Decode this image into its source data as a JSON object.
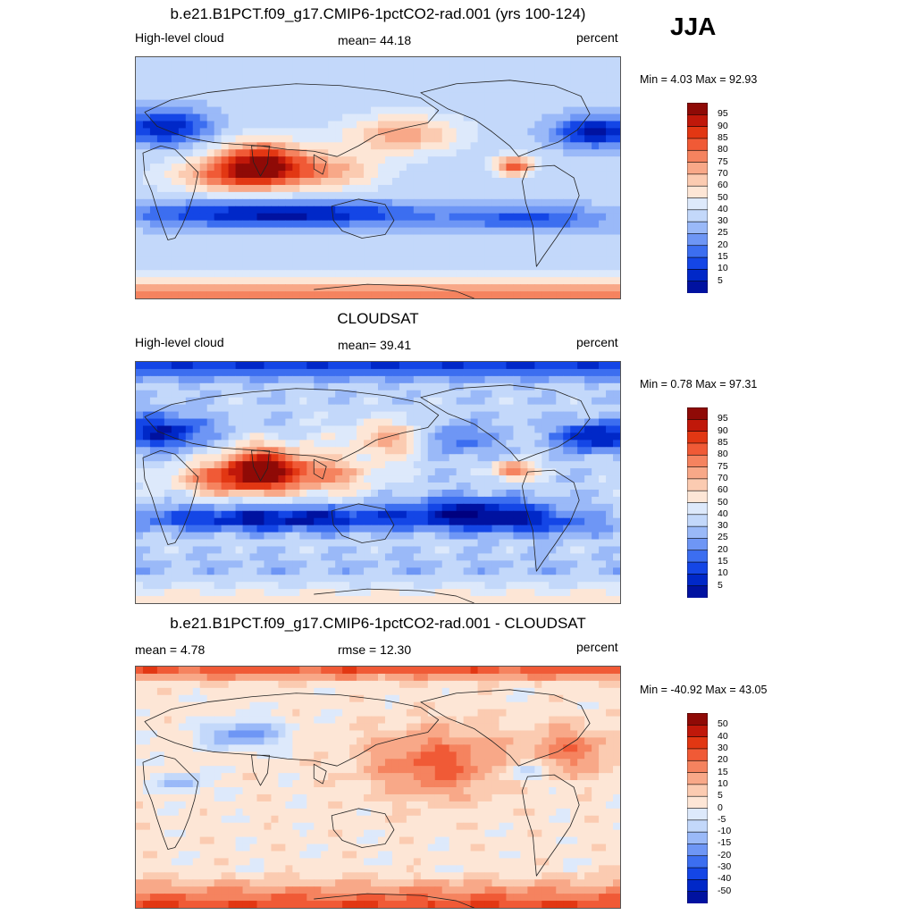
{
  "season": "JJA",
  "units": "percent",
  "colors": {
    "lev": [
      "#00007f",
      "#0012a0",
      "#0028c8",
      "#1446e6",
      "#3c6ef0",
      "#6e96f5",
      "#9ab9f8",
      "#c3d8fa",
      "#dde9fb",
      "#fde6d6",
      "#fbcbb1",
      "#f8a888",
      "#f5835f",
      "#f05a36",
      "#e23713",
      "#c0180a",
      "#8f0a06"
    ],
    "land": "none"
  },
  "panels": [
    {
      "id": "model",
      "title": "b.e21.B1PCT.f09_g17.CMIP6-1pctCO2-rad.001 (yrs 100-124)",
      "left_label": "High-level cloud",
      "center_label": "mean=  44.18",
      "right_label": "percent",
      "minmax": "Min =   4.03 Max =  92.93",
      "ticks": [
        "95",
        "90",
        "85",
        "80",
        "75",
        "70",
        "60",
        "50",
        "40",
        "30",
        "25",
        "20",
        "15",
        "10",
        "5"
      ]
    },
    {
      "id": "obs",
      "title": "CLOUDSAT",
      "left_label": "High-level cloud",
      "center_label": "mean=  39.41",
      "right_label": "percent",
      "minmax": "Min =   0.78 Max =  97.31",
      "ticks": [
        "95",
        "90",
        "85",
        "80",
        "75",
        "70",
        "60",
        "50",
        "40",
        "30",
        "25",
        "20",
        "15",
        "10",
        "5"
      ]
    },
    {
      "id": "diff",
      "title": "b.e21.B1PCT.f09_g17.CMIP6-1pctCO2-rad.001 - CLOUDSAT",
      "left_label": "mean =   4.78",
      "center_label": "rmse =  12.30",
      "right_label": "percent",
      "minmax": "Min = -40.92 Max =  43.05",
      "ticks": [
        "50",
        "40",
        "30",
        "20",
        "15",
        "10",
        "5",
        "0",
        "-5",
        "-10",
        "-15",
        "-20",
        "-30",
        "-40",
        "-50"
      ]
    }
  ],
  "chart_data": [
    {
      "type": "heatmap",
      "title": "b.e21.B1PCT.f09_g17.CMIP6-1pctCO2-rad.001 (yrs 100-124)",
      "variable": "High-level cloud",
      "units": "percent",
      "season": "JJA",
      "mean": 44.18,
      "min": 4.03,
      "max": 92.93,
      "contour_levels": [
        5,
        10,
        15,
        20,
        25,
        30,
        40,
        50,
        60,
        70,
        75,
        80,
        85,
        90,
        95
      ],
      "xlim": [
        0,
        360
      ],
      "ylim": [
        -90,
        90
      ]
    },
    {
      "type": "heatmap",
      "title": "CLOUDSAT",
      "variable": "High-level cloud",
      "units": "percent",
      "season": "JJA",
      "mean": 39.41,
      "min": 0.78,
      "max": 97.31,
      "contour_levels": [
        5,
        10,
        15,
        20,
        25,
        30,
        40,
        50,
        60,
        70,
        75,
        80,
        85,
        90,
        95
      ],
      "xlim": [
        0,
        360
      ],
      "ylim": [
        -90,
        90
      ]
    },
    {
      "type": "heatmap",
      "title": "b.e21.B1PCT.f09_g17.CMIP6-1pctCO2-rad.001 - CLOUDSAT",
      "units": "percent",
      "season": "JJA",
      "mean": 4.78,
      "rmse": 12.3,
      "min": -40.92,
      "max": 43.05,
      "contour_levels": [
        -50,
        -40,
        -30,
        -20,
        -15,
        -10,
        -5,
        0,
        5,
        10,
        15,
        20,
        30,
        40,
        50
      ],
      "xlim": [
        0,
        360
      ],
      "ylim": [
        -90,
        90
      ]
    }
  ]
}
